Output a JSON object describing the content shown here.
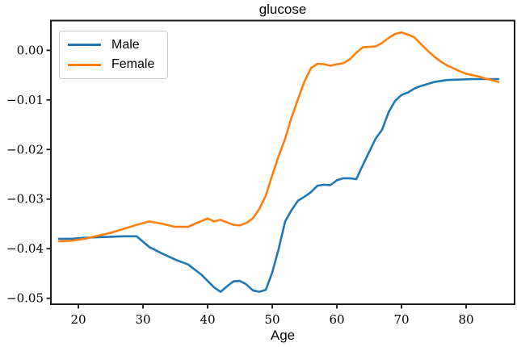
{
  "title": "glucose",
  "x_axis_label": "Age",
  "colors": {
    "male": "#1f77b4",
    "female": "#ff7f0e",
    "spine": "#1a1a1a",
    "legend_border": "#cccccc",
    "background": "#ffffff"
  },
  "legend": {
    "position": "upper left",
    "entries": [
      {
        "label": "Male",
        "color": "#1f77b4"
      },
      {
        "label": "Female",
        "color": "#ff7f0e"
      }
    ]
  },
  "chart_data": {
    "type": "line",
    "title": "glucose",
    "xlabel": "Age",
    "ylabel": "",
    "grid": false,
    "legend_position": "upper left",
    "xlim": [
      15.75,
      87.5
    ],
    "ylim": [
      -0.0512,
      0.006
    ],
    "x_ticks": [
      20,
      30,
      40,
      50,
      60,
      70,
      80
    ],
    "x_tick_labels": [
      "20",
      "30",
      "40",
      "50",
      "60",
      "70",
      "80"
    ],
    "y_ticks": [
      0.0,
      -0.01,
      -0.02,
      -0.03,
      -0.04,
      -0.05
    ],
    "y_tick_labels": [
      "0.00",
      "−0.01",
      "−0.02",
      "−0.03",
      "−0.04",
      "−0.05"
    ],
    "series": [
      {
        "name": "Male",
        "color": "#1f77b4",
        "x": [
          17,
          19,
          21,
          23,
          25,
          27,
          29,
          31,
          33,
          35,
          37,
          39,
          41,
          42,
          43,
          44,
          45,
          46,
          47,
          48,
          49,
          50,
          51,
          52,
          53,
          54,
          55,
          56,
          57,
          58,
          59,
          60,
          61,
          62,
          63,
          64,
          65,
          66,
          67,
          68,
          69,
          70,
          71,
          72,
          73,
          75,
          77,
          79,
          81,
          83,
          85
        ],
        "y": [
          -0.038,
          -0.038,
          -0.0378,
          -0.0377,
          -0.0376,
          -0.0375,
          -0.0375,
          -0.0397,
          -0.041,
          -0.0422,
          -0.0432,
          -0.0452,
          -0.0478,
          -0.0487,
          -0.0476,
          -0.0466,
          -0.0465,
          -0.0472,
          -0.0484,
          -0.0487,
          -0.0483,
          -0.0448,
          -0.04,
          -0.0345,
          -0.0322,
          -0.0303,
          -0.0295,
          -0.0286,
          -0.0273,
          -0.0271,
          -0.0272,
          -0.0262,
          -0.0258,
          -0.0258,
          -0.026,
          -0.0232,
          -0.0205,
          -0.0178,
          -0.016,
          -0.0125,
          -0.0102,
          -0.009,
          -0.0085,
          -0.0077,
          -0.0072,
          -0.0064,
          -0.006,
          -0.0059,
          -0.0058,
          -0.0058,
          -0.0058
        ]
      },
      {
        "name": "Female",
        "color": "#ff7f0e",
        "x": [
          17,
          19,
          21,
          23,
          25,
          27,
          29,
          31,
          33,
          35,
          37,
          38,
          40,
          41,
          42,
          44,
          45,
          46,
          47,
          48,
          49,
          50,
          51,
          52,
          53,
          54,
          55,
          56,
          57,
          58,
          59,
          60,
          61,
          62,
          63,
          64,
          65,
          66,
          67,
          68,
          69,
          70,
          71,
          72,
          73,
          74,
          75,
          76,
          77,
          78,
          79,
          80,
          81,
          82,
          83,
          84,
          85
        ],
        "y": [
          -0.0385,
          -0.0384,
          -0.038,
          -0.0374,
          -0.0368,
          -0.036,
          -0.0352,
          -0.0345,
          -0.035,
          -0.0356,
          -0.0356,
          -0.035,
          -0.0339,
          -0.0345,
          -0.0342,
          -0.0352,
          -0.0353,
          -0.0348,
          -0.0339,
          -0.032,
          -0.0293,
          -0.0252,
          -0.0213,
          -0.0178,
          -0.0135,
          -0.0098,
          -0.0062,
          -0.0036,
          -0.0027,
          -0.0028,
          -0.0031,
          -0.0028,
          -0.0026,
          -0.0018,
          -0.0005,
          0.0006,
          0.0007,
          0.0008,
          0.0015,
          0.0025,
          0.0033,
          0.0036,
          0.0032,
          0.0026,
          0.0013,
          0.0,
          -0.0012,
          -0.0022,
          -0.003,
          -0.0036,
          -0.0042,
          -0.0047,
          -0.005,
          -0.0053,
          -0.0057,
          -0.006,
          -0.0064
        ]
      }
    ]
  }
}
